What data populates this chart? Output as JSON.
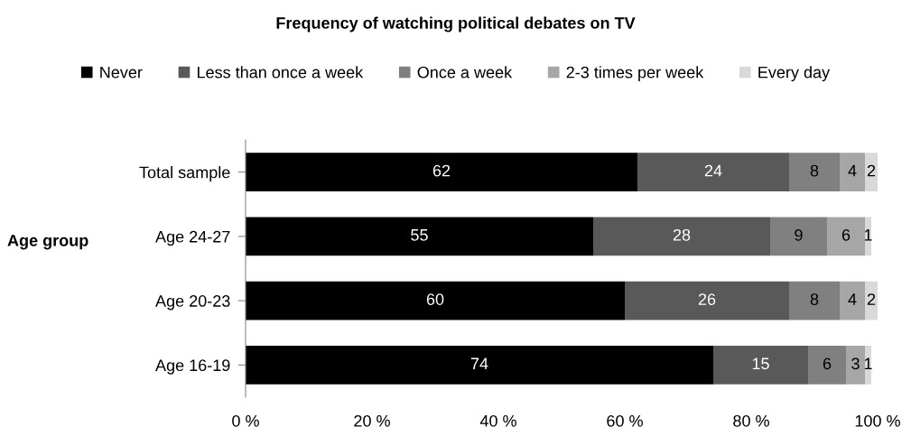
{
  "chart_data": {
    "type": "bar",
    "orientation": "horizontal",
    "stacked": true,
    "title": "Frequency of watching political debates on TV",
    "ylabel": "Age group",
    "categories": [
      "Total sample",
      "Age 24-27",
      "Age 20-23",
      "Age 16-19"
    ],
    "series": [
      {
        "name": "Never",
        "color": "#000000",
        "values": [
          62,
          55,
          60,
          74
        ]
      },
      {
        "name": "Less than once a week",
        "color": "#595959",
        "values": [
          24,
          28,
          26,
          15
        ]
      },
      {
        "name": "Once a week",
        "color": "#808080",
        "values": [
          8,
          9,
          8,
          6
        ]
      },
      {
        "name": "2-3 times per week",
        "color": "#a6a6a6",
        "values": [
          4,
          6,
          4,
          3
        ]
      },
      {
        "name": "Every day",
        "color": "#d9d9d9",
        "values": [
          2,
          1,
          2,
          1
        ]
      }
    ],
    "xlim": [
      0,
      100
    ],
    "xticks": [
      {
        "value": 0,
        "label": "0 %"
      },
      {
        "value": 20,
        "label": "20 %"
      },
      {
        "value": 40,
        "label": "40 %"
      },
      {
        "value": 60,
        "label": "60 %"
      },
      {
        "value": 80,
        "label": "80 %"
      },
      {
        "value": 100,
        "label": "100 %"
      }
    ],
    "data_labels": true,
    "legend": "top",
    "grid": false
  }
}
